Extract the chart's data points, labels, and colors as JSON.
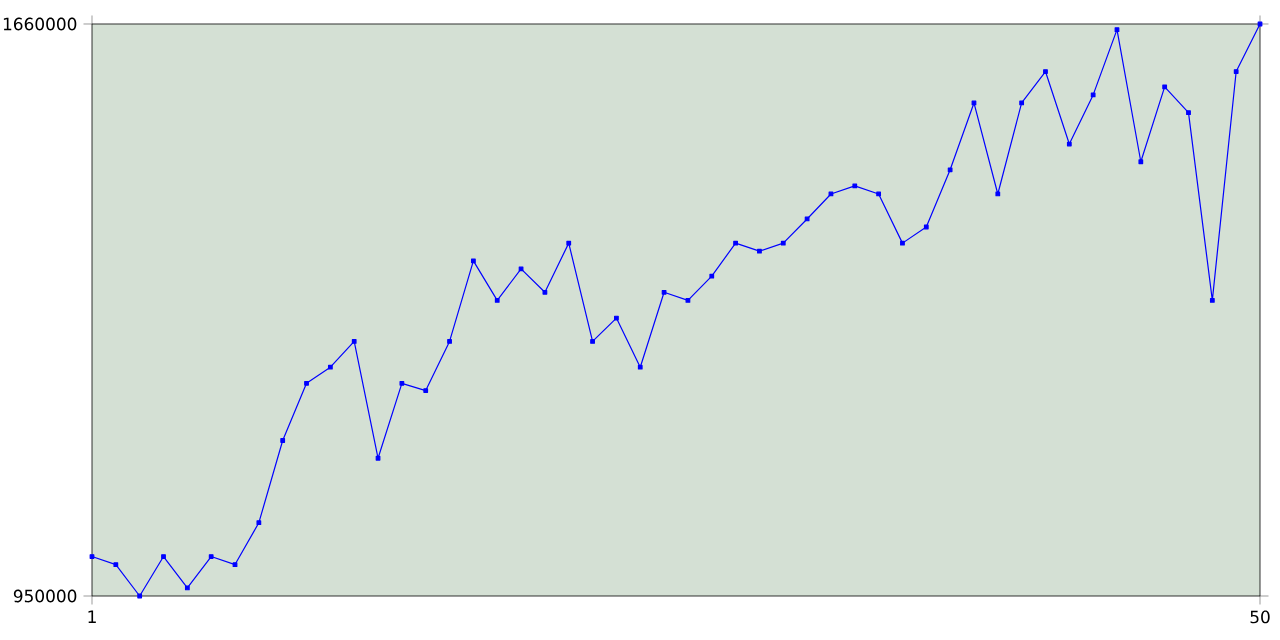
{
  "chart_data": {
    "type": "line",
    "x": [
      1,
      2,
      3,
      4,
      5,
      6,
      7,
      8,
      9,
      10,
      11,
      12,
      13,
      14,
      15,
      16,
      17,
      18,
      19,
      20,
      21,
      22,
      23,
      24,
      25,
      26,
      27,
      28,
      29,
      30,
      31,
      32,
      33,
      34,
      35,
      36,
      37,
      38,
      39,
      40,
      41,
      42,
      43,
      44,
      45,
      46,
      47,
      48,
      49,
      50
    ],
    "series": [
      {
        "color": "#0000ff",
        "values": [
          999000,
          989000,
          950000,
          999000,
          960000,
          999000,
          989000,
          1041000,
          1143000,
          1214000,
          1234000,
          1266000,
          1121000,
          1214000,
          1205000,
          1266000,
          1366000,
          1317000,
          1356000,
          1327000,
          1388000,
          1266000,
          1295000,
          1234000,
          1327000,
          1317000,
          1347000,
          1388000,
          1378000,
          1388000,
          1418000,
          1449000,
          1459000,
          1449000,
          1388000,
          1408000,
          1479000,
          1562000,
          1449000,
          1562000,
          1601000,
          1511000,
          1572000,
          1653000,
          1489000,
          1582000,
          1550000,
          1317000,
          1601000,
          1660000
        ]
      }
    ],
    "xlim": [
      1,
      50
    ],
    "xticks": [
      1,
      50
    ],
    "ylim": [
      950000,
      1660000
    ],
    "yticks": [
      950000,
      1660000
    ],
    "marker": "square",
    "grid": false
  }
}
